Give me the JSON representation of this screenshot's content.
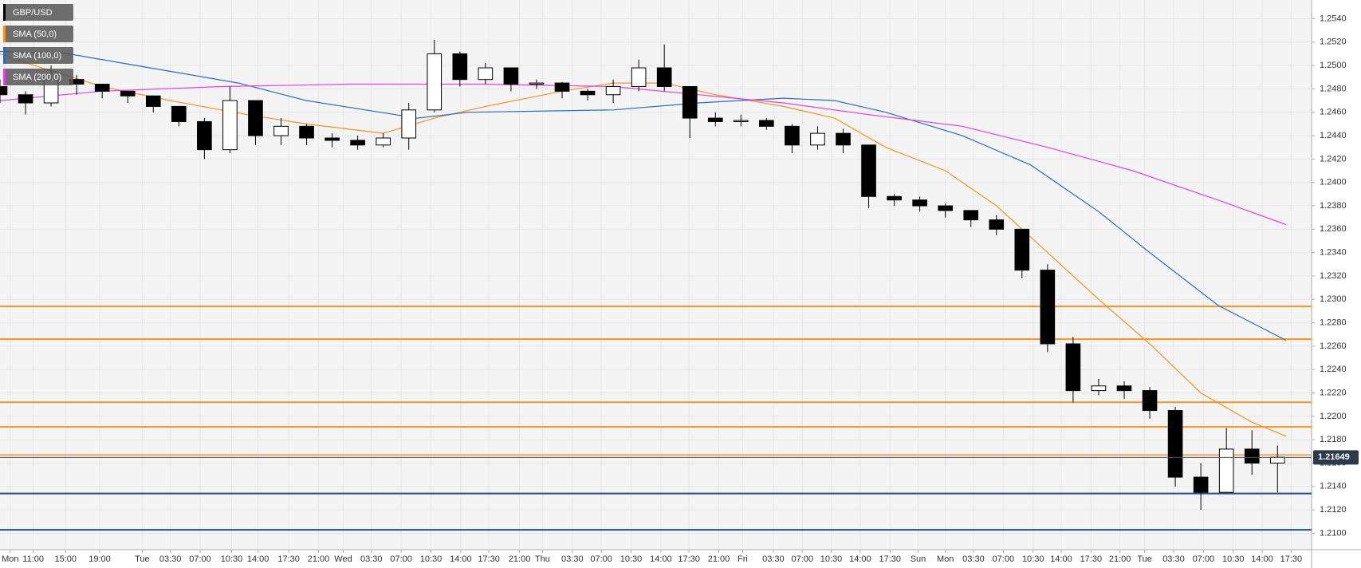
{
  "chart_data": {
    "type": "candlestick",
    "xlim": [
      0,
      154
    ],
    "ylim": [
      1.2086,
      1.2556
    ],
    "grid": true,
    "xticks": [
      {
        "value": 1.2,
        "label": "Mon"
      },
      {
        "value": 3.9,
        "label": "11:00"
      },
      {
        "value": 7.7,
        "label": "15:00"
      },
      {
        "value": 11.7,
        "label": "19:00"
      },
      {
        "value": 16.7,
        "label": "Tue"
      },
      {
        "value": 20,
        "label": "03:30"
      },
      {
        "value": 23.5,
        "label": "07:00"
      },
      {
        "value": 27.2,
        "label": "10:30"
      },
      {
        "value": 30.3,
        "label": "14:00"
      },
      {
        "value": 33.9,
        "label": "17:30"
      },
      {
        "value": 37.4,
        "label": "21:00"
      },
      {
        "value": 40.3,
        "label": "Wed"
      },
      {
        "value": 43.6,
        "label": "03:30"
      },
      {
        "value": 47.1,
        "label": "07:00"
      },
      {
        "value": 50.6,
        "label": "10:30"
      },
      {
        "value": 54.1,
        "label": "14:00"
      },
      {
        "value": 57.4,
        "label": "17:30"
      },
      {
        "value": 61,
        "label": "21:00"
      },
      {
        "value": 63.7,
        "label": "Thu"
      },
      {
        "value": 67.2,
        "label": "03:30"
      },
      {
        "value": 70.6,
        "label": "07:00"
      },
      {
        "value": 74.1,
        "label": "10:30"
      },
      {
        "value": 77.6,
        "label": "14:00"
      },
      {
        "value": 80.9,
        "label": "17:30"
      },
      {
        "value": 84.4,
        "label": "21:00"
      },
      {
        "value": 87.2,
        "label": "Fri"
      },
      {
        "value": 90.8,
        "label": "03:30"
      },
      {
        "value": 94.2,
        "label": "07:00"
      },
      {
        "value": 97.6,
        "label": "10:30"
      },
      {
        "value": 101,
        "label": "14:00"
      },
      {
        "value": 104.5,
        "label": "17:30"
      },
      {
        "value": 107.8,
        "label": "Sun"
      },
      {
        "value": 111,
        "label": "Mon"
      },
      {
        "value": 114.3,
        "label": "03:30"
      },
      {
        "value": 117.8,
        "label": "07:00"
      },
      {
        "value": 121.3,
        "label": "10:30"
      },
      {
        "value": 124.6,
        "label": "14:00"
      },
      {
        "value": 128.1,
        "label": "17:30"
      },
      {
        "value": 131.5,
        "label": "21:00"
      },
      {
        "value": 134.4,
        "label": "Tue"
      },
      {
        "value": 137.8,
        "label": "03:30"
      },
      {
        "value": 141.3,
        "label": "07:00"
      },
      {
        "value": 144.8,
        "label": "10:30"
      },
      {
        "value": 148.2,
        "label": "14:00"
      },
      {
        "value": 151.6,
        "label": "17:30"
      }
    ],
    "yticks": [
      {
        "value": 1.21,
        "label": "1.2100"
      },
      {
        "value": 1.212,
        "label": "1.2120"
      },
      {
        "value": 1.214,
        "label": "1.2140"
      },
      {
        "value": 1.216,
        "label": "1.2160"
      },
      {
        "value": 1.218,
        "label": "1.2180"
      },
      {
        "value": 1.22,
        "label": "1.2200"
      },
      {
        "value": 1.222,
        "label": "1.2220"
      },
      {
        "value": 1.224,
        "label": "1.2240"
      },
      {
        "value": 1.226,
        "label": "1.2260"
      },
      {
        "value": 1.228,
        "label": "1.2280"
      },
      {
        "value": 1.23,
        "label": "1.2300"
      },
      {
        "value": 1.232,
        "label": "1.2320"
      },
      {
        "value": 1.234,
        "label": "1.2340"
      },
      {
        "value": 1.236,
        "label": "1.2360"
      },
      {
        "value": 1.238,
        "label": "1.2380"
      },
      {
        "value": 1.24,
        "label": "1.2400"
      },
      {
        "value": 1.242,
        "label": "1.2420"
      },
      {
        "value": 1.244,
        "label": "1.2440"
      },
      {
        "value": 1.246,
        "label": "1.2460"
      },
      {
        "value": 1.248,
        "label": "1.2480"
      },
      {
        "value": 1.25,
        "label": "1.2500"
      },
      {
        "value": 1.252,
        "label": "1.2520"
      },
      {
        "value": 1.254,
        "label": "1.2540"
      }
    ],
    "candles": {
      "name": "GBP/USD",
      "color": "#000000",
      "x": [
        0,
        3,
        6,
        9,
        12,
        15,
        18,
        21,
        24,
        27,
        30,
        33,
        36,
        39,
        42,
        45,
        48,
        51,
        54,
        57,
        60,
        63,
        66,
        69,
        72,
        75,
        78,
        81,
        84,
        87,
        90,
        93,
        96,
        99,
        102,
        105,
        108,
        111,
        114,
        117,
        120,
        123,
        126,
        129,
        132,
        135,
        138,
        141,
        144,
        147,
        150
      ],
      "open": [
        1.2482,
        1.2475,
        1.2468,
        1.2488,
        1.2484,
        1.2478,
        1.2474,
        1.2465,
        1.2452,
        1.2428,
        1.247,
        1.244,
        1.2448,
        1.2438,
        1.2436,
        1.2432,
        1.2438,
        1.2462,
        1.251,
        1.2488,
        1.2498,
        1.2484,
        1.2485,
        1.2478,
        1.2475,
        1.2482,
        1.2498,
        1.2482,
        1.2455,
        1.2452,
        1.2453,
        1.2448,
        1.2432,
        1.2442,
        1.2432,
        1.2388,
        1.2385,
        1.238,
        1.2376,
        1.2368,
        1.236,
        1.2325,
        1.2262,
        1.2222,
        1.2226,
        1.2222,
        1.2205,
        1.2148,
        1.2135,
        1.2172,
        1.216
      ],
      "high": [
        1.2488,
        1.2478,
        1.25,
        1.2492,
        1.2482,
        1.2478,
        1.2472,
        1.2462,
        1.2455,
        1.2482,
        1.2468,
        1.2455,
        1.245,
        1.2442,
        1.244,
        1.2442,
        1.2468,
        1.2522,
        1.2512,
        1.2502,
        1.2498,
        1.2488,
        1.2486,
        1.248,
        1.2488,
        1.2505,
        1.2518,
        1.2482,
        1.246,
        1.2458,
        1.2455,
        1.245,
        1.2448,
        1.2446,
        1.2432,
        1.239,
        1.2388,
        1.2382,
        1.2376,
        1.2372,
        1.236,
        1.233,
        1.2268,
        1.2232,
        1.223,
        1.2225,
        1.2208,
        1.216,
        1.219,
        1.2188,
        1.2175
      ],
      "low": [
        1.2468,
        1.2458,
        1.2465,
        1.2475,
        1.2472,
        1.2468,
        1.246,
        1.2448,
        1.242,
        1.2425,
        1.2432,
        1.2432,
        1.2432,
        1.243,
        1.2428,
        1.243,
        1.2428,
        1.246,
        1.2482,
        1.2484,
        1.2478,
        1.248,
        1.2472,
        1.247,
        1.2468,
        1.2478,
        1.2478,
        1.2438,
        1.2448,
        1.2448,
        1.2445,
        1.2425,
        1.2428,
        1.2425,
        1.2378,
        1.238,
        1.2375,
        1.237,
        1.2362,
        1.2355,
        1.2318,
        1.2255,
        1.2212,
        1.2218,
        1.2215,
        1.2198,
        1.214,
        1.212,
        1.2135,
        1.215,
        1.2135
      ],
      "close": [
        1.2475,
        1.2468,
        1.2488,
        1.2484,
        1.2478,
        1.2474,
        1.2465,
        1.2452,
        1.2428,
        1.247,
        1.244,
        1.2448,
        1.2438,
        1.2436,
        1.2432,
        1.2438,
        1.2462,
        1.251,
        1.2488,
        1.2498,
        1.2484,
        1.2485,
        1.2478,
        1.2475,
        1.2482,
        1.2498,
        1.2482,
        1.2455,
        1.2452,
        1.2453,
        1.2448,
        1.2432,
        1.2442,
        1.2432,
        1.2388,
        1.2385,
        1.238,
        1.2376,
        1.2368,
        1.236,
        1.2325,
        1.2262,
        1.2222,
        1.2226,
        1.2222,
        1.2205,
        1.2148,
        1.2135,
        1.2172,
        1.216,
        1.2165
      ]
    },
    "series": [
      {
        "name": "SMA (50,0)",
        "color": "#f7931e",
        "x": [
          0,
          4,
          12,
          20,
          29,
          36,
          45,
          51,
          57,
          66,
          72,
          78,
          84,
          92,
          98,
          104,
          111,
          117,
          123,
          129,
          135,
          141,
          147,
          151
        ],
        "values": [
          1.251,
          1.25,
          1.2482,
          1.247,
          1.2458,
          1.245,
          1.2442,
          1.2455,
          1.2465,
          1.2478,
          1.2485,
          1.2485,
          1.2475,
          1.2465,
          1.2455,
          1.243,
          1.241,
          1.238,
          1.234,
          1.23,
          1.2262,
          1.222,
          1.2195,
          1.2183
        ]
      },
      {
        "name": "SMA (100,0)",
        "color": "#2a6bc1",
        "x": [
          0,
          8,
          16,
          28,
          36,
          49,
          55,
          72,
          82,
          92,
          98,
          104,
          113,
          121,
          129,
          135,
          143,
          151
        ],
        "values": [
          1.2512,
          1.251,
          1.25,
          1.2485,
          1.247,
          1.2455,
          1.246,
          1.2462,
          1.2468,
          1.2472,
          1.247,
          1.246,
          1.244,
          1.2415,
          1.2375,
          1.234,
          1.2295,
          1.2265
        ]
      },
      {
        "name": "SMA (200,0)",
        "color": "#e83ee8",
        "x": [
          0,
          12,
          26,
          41,
          57,
          72,
          82,
          92,
          102,
          113,
          123,
          133,
          143,
          151
        ],
        "values": [
          1.247,
          1.2478,
          1.2482,
          1.2484,
          1.2484,
          1.2482,
          1.2475,
          1.2468,
          1.2458,
          1.2448,
          1.243,
          1.241,
          1.2385,
          1.2364
        ]
      }
    ],
    "levels": [
      {
        "value": 1.2294,
        "color": "#f7931e"
      },
      {
        "value": 1.2266,
        "color": "#f7931e"
      },
      {
        "value": 1.2212,
        "color": "#f7931e"
      },
      {
        "value": 1.2191,
        "color": "#f7931e"
      },
      {
        "value": 1.2167,
        "color": "#e8a85a"
      },
      {
        "value": 1.2134,
        "color": "#1f4e96"
      },
      {
        "value": 1.2103,
        "color": "#1f4e96"
      }
    ],
    "last_price": 1.21649
  }
}
